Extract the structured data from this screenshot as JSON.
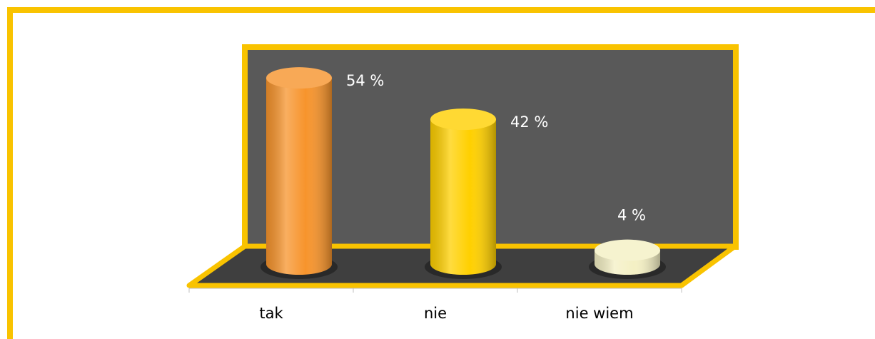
{
  "chart_data": {
    "type": "bar",
    "categories": [
      "tak",
      "nie",
      "nie wiem"
    ],
    "values": [
      54,
      42,
      4
    ],
    "value_labels": [
      "54 %",
      "42 %",
      "4 %"
    ],
    "colors": [
      "#f7942c",
      "#ffd000",
      "#f4f0c4"
    ]
  }
}
